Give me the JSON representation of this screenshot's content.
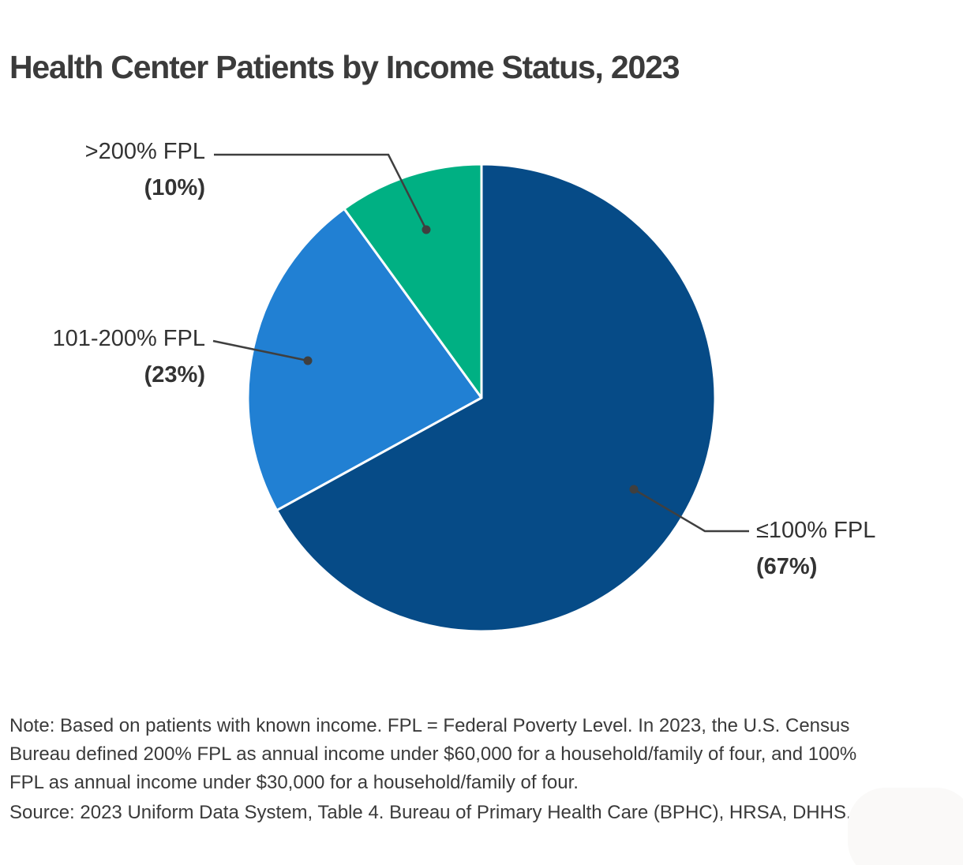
{
  "title": "Health Center Patients by Income Status, 2023",
  "chart_data": {
    "type": "pie",
    "title": "Health Center Patients by Income Status, 2023",
    "unit": "percent of health center patients",
    "start_angle": "12 o'clock, clockwise",
    "slices": [
      {
        "id": "le100-fpl",
        "label": "≤100% FPL",
        "pct_label": "(67%)",
        "value": 67,
        "color": "#064b87"
      },
      {
        "id": "101-200-fpl",
        "label": "101-200% FPL",
        "pct_label": "(23%)",
        "value": 23,
        "color": "#2180d3"
      },
      {
        "id": "gt200-fpl",
        "label": ">200% FPL",
        "pct_label": "(10%)",
        "value": 10,
        "color": "#00b083"
      }
    ],
    "separator_color": "#ffffff",
    "leader_line_color": "#3f3f3f",
    "legend_position": "outside labels with leader lines"
  },
  "note": "Note: Based on patients with known income. FPL = Federal Poverty Level. In 2023, the U.S. Census Bureau defined 200% FPL as annual income under $60,000 for a household/family of four, and 100% FPL as annual income under $30,000 for a household/family of four.",
  "source": "Source: 2023 Uniform Data System, Table 4. Bureau of Primary Health Care (BPHC), HRSA, DHHS."
}
